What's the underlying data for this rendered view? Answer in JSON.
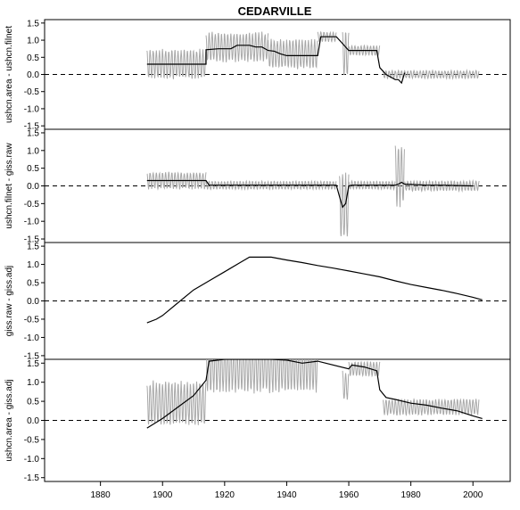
{
  "chart_data": {
    "type": "line",
    "title": "CEDARVILLE",
    "x_ticks": [
      1880,
      1900,
      1920,
      1940,
      1960,
      1980,
      2000
    ],
    "xlim": [
      1862,
      2012
    ],
    "panels": [
      {
        "ylabel": "ushcn.area - ushcn.filnet",
        "ylim": [
          -1.6,
          1.6
        ],
        "y_ticks": [
          -1.5,
          -1.0,
          -0.5,
          0.0,
          0.5,
          1.0,
          1.5
        ],
        "zero_line": true,
        "monthly_series": {
          "color": "#a8a8a8",
          "segments": [
            {
              "x": [
                1895,
                1914
              ],
              "level": 0.3,
              "amplitude": 0.45
            },
            {
              "x": [
                1914,
                1934
              ],
              "level": 0.8,
              "amplitude": 0.45
            },
            {
              "x": [
                1934,
                1950
              ],
              "level": 0.6,
              "amplitude": 0.45
            },
            {
              "x": [
                1950,
                1956
              ],
              "level": 1.1,
              "amplitude": 0.15
            },
            {
              "x": [
                1958,
                1960
              ],
              "level": 0.6,
              "amplitude": 0.7
            },
            {
              "x": [
                1960,
                1970
              ],
              "level": 0.7,
              "amplitude": 0.15
            },
            {
              "x": [
                1971,
                2002
              ],
              "level": 0.0,
              "amplitude": 0.12
            }
          ]
        },
        "annual_series": {
          "color": "#000000",
          "x": [
            1895,
            1914,
            1914,
            1918,
            1922,
            1924,
            1926,
            1928,
            1930,
            1932,
            1934,
            1936,
            1938,
            1940,
            1942,
            1944,
            1946,
            1948,
            1950,
            1951,
            1955,
            1956,
            1960,
            1961,
            1969,
            1970,
            1972,
            1975,
            1976,
            1977,
            1978
          ],
          "y": [
            0.3,
            0.3,
            0.72,
            0.75,
            0.75,
            0.85,
            0.85,
            0.85,
            0.8,
            0.8,
            0.7,
            0.68,
            0.6,
            0.55,
            0.55,
            0.55,
            0.55,
            0.55,
            0.55,
            1.1,
            1.1,
            1.1,
            0.7,
            0.7,
            0.7,
            0.2,
            0.0,
            -0.15,
            -0.15,
            -0.25,
            0.05
          ]
        }
      },
      {
        "ylabel": "ushcn.filnet - giss.raw",
        "ylim": [
          -1.6,
          1.6
        ],
        "y_ticks": [
          -1.5,
          -1.0,
          -0.5,
          0.0,
          0.5,
          1.0,
          1.5
        ],
        "zero_line": true,
        "monthly_series": {
          "color": "#a8a8a8",
          "segments": [
            {
              "x": [
                1895,
                1914
              ],
              "level": 0.15,
              "amplitude": 0.25
            },
            {
              "x": [
                1914,
                1956
              ],
              "level": 0.02,
              "amplitude": 0.12
            },
            {
              "x": [
                1957,
                1960
              ],
              "level": -0.6,
              "amplitude": 1.0
            },
            {
              "x": [
                1960,
                1975
              ],
              "level": 0.02,
              "amplitude": 0.12
            },
            {
              "x": [
                1975,
                1978
              ],
              "level": 0.3,
              "amplitude": 0.9
            },
            {
              "x": [
                1978,
                2002
              ],
              "level": 0.0,
              "amplitude": 0.15
            }
          ]
        },
        "annual_series": {
          "color": "#000000",
          "x": [
            1895,
            1900,
            1905,
            1910,
            1914,
            1915,
            1920,
            1930,
            1940,
            1950,
            1956,
            1957,
            1958,
            1959,
            1960,
            1961,
            1965,
            1970,
            1975,
            1976,
            1977,
            1978,
            1985,
            1990,
            2000
          ],
          "y": [
            0.15,
            0.15,
            0.15,
            0.15,
            0.15,
            0.02,
            0.02,
            0.02,
            0.02,
            0.02,
            0.02,
            -0.3,
            -0.6,
            -0.5,
            0.0,
            0.02,
            0.02,
            0.02,
            0.02,
            0.05,
            0.1,
            0.05,
            0.02,
            0.02,
            0.0
          ]
        }
      },
      {
        "ylabel": "giss.raw - giss.adj",
        "ylim": [
          -1.6,
          1.6
        ],
        "y_ticks": [
          -1.5,
          -1.0,
          -0.5,
          0.0,
          0.5,
          1.0,
          1.5
        ],
        "zero_line": true,
        "annual_series": {
          "color": "#000000",
          "x": [
            1895,
            1898,
            1900,
            1905,
            1910,
            1915,
            1920,
            1925,
            1928,
            1930,
            1935,
            1940,
            1945,
            1950,
            1955,
            1960,
            1965,
            1970,
            1975,
            1980,
            1985,
            1990,
            1995,
            2000,
            2003
          ],
          "y": [
            -0.6,
            -0.5,
            -0.4,
            -0.05,
            0.3,
            0.55,
            0.8,
            1.05,
            1.2,
            1.2,
            1.2,
            1.12,
            1.05,
            0.97,
            0.9,
            0.82,
            0.74,
            0.66,
            0.55,
            0.45,
            0.37,
            0.29,
            0.2,
            0.1,
            0.03
          ]
        }
      },
      {
        "ylabel": "ushcn.area - giss.adj",
        "ylim": [
          -1.6,
          1.6
        ],
        "y_ticks": [
          -1.5,
          -1.0,
          -0.5,
          0.0,
          0.5,
          1.0,
          1.5
        ],
        "zero_line": true,
        "monthly_series": {
          "color": "#a8a8a8",
          "segments": [
            {
              "x": [
                1895,
                1914
              ],
              "level": 0.45,
              "amplitude": 0.6
            },
            {
              "x": [
                1914,
                1950
              ],
              "level": 1.4,
              "amplitude": 0.7
            },
            {
              "x": [
                1958,
                1960
              ],
              "level": 0.9,
              "amplitude": 0.4
            },
            {
              "x": [
                1960,
                1970
              ],
              "level": 1.35,
              "amplitude": 0.2
            },
            {
              "x": [
                1971,
                2002
              ],
              "level": 0.35,
              "amplitude": 0.22
            }
          ]
        },
        "annual_series": {
          "color": "#000000",
          "x": [
            1895,
            1900,
            1905,
            1910,
            1914,
            1915,
            1920,
            1925,
            1930,
            1935,
            1940,
            1945,
            1950,
            1960,
            1961,
            1965,
            1969,
            1970,
            1972,
            1975,
            1980,
            1985,
            1990,
            1995,
            2000,
            2003
          ],
          "y": [
            -0.2,
            0.05,
            0.35,
            0.65,
            1.05,
            1.55,
            1.6,
            1.6,
            1.6,
            1.6,
            1.58,
            1.5,
            1.55,
            1.35,
            1.45,
            1.4,
            1.3,
            0.8,
            0.6,
            0.55,
            0.45,
            0.4,
            0.32,
            0.25,
            0.12,
            0.05
          ]
        }
      }
    ]
  }
}
